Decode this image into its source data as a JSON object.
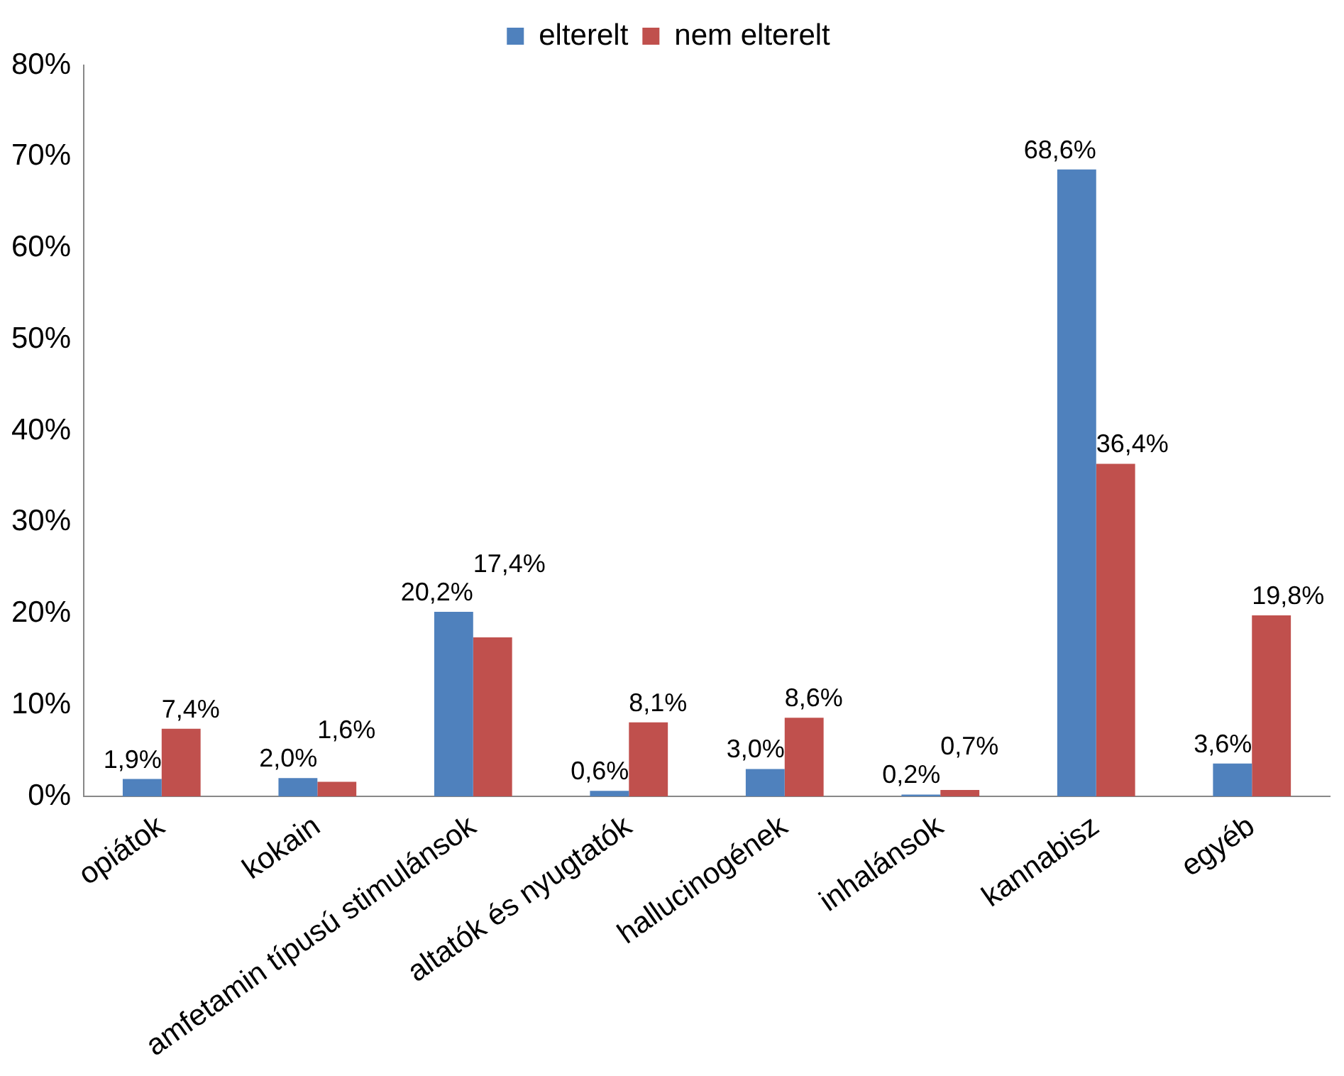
{
  "chart_data": {
    "type": "bar",
    "categories": [
      "opiátok",
      "kokain",
      "amfetamin típusú stimulánsok",
      "altatók és nyugtatók",
      "hallucinogének",
      "inhalánsok",
      "kannabisz",
      "egyéb"
    ],
    "series": [
      {
        "name": "elterelt",
        "color": "#4f81bd",
        "values": [
          1.9,
          2.0,
          20.2,
          0.6,
          3.0,
          0.2,
          68.6,
          3.6
        ],
        "value_labels": [
          "1,9%",
          "2,0%",
          "20,2%",
          "0,6%",
          "3,0%",
          "0,2%",
          "68,6%",
          "3,6%"
        ]
      },
      {
        "name": "nem elterelt",
        "color": "#c0504d",
        "values": [
          7.4,
          1.6,
          17.4,
          8.1,
          8.6,
          0.7,
          36.4,
          19.8
        ],
        "value_labels": [
          "7,4%",
          "1,6%",
          "17,4%",
          "8,1%",
          "8,6%",
          "0,7%",
          "36,4%",
          "19,8%"
        ]
      }
    ],
    "ylim": [
      0,
      80
    ],
    "yticks": [
      {
        "value": 0,
        "label": "0%"
      },
      {
        "value": 10,
        "label": "10%"
      },
      {
        "value": 20,
        "label": "20%"
      },
      {
        "value": 30,
        "label": "30%"
      },
      {
        "value": 40,
        "label": "40%"
      },
      {
        "value": 50,
        "label": "50%"
      },
      {
        "value": 60,
        "label": "60%"
      },
      {
        "value": 70,
        "label": "70%"
      },
      {
        "value": 80,
        "label": "80%"
      }
    ],
    "grid": false,
    "legend": "top"
  }
}
